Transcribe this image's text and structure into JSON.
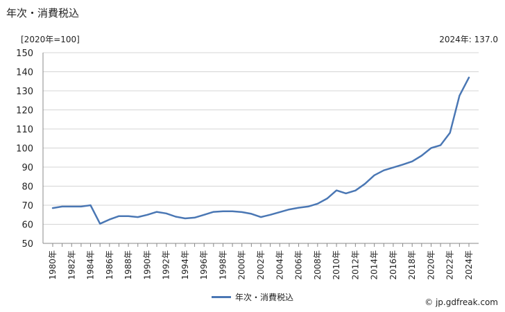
{
  "title": "年次・消費税込",
  "unit_label": "[2020年=100]",
  "latest_label": "2024年: 137.0",
  "credit": "© jp.gdfreak.com",
  "colors": {
    "line": "#4a77b4",
    "grid": "#d4d4d4",
    "axis": "#888888"
  },
  "chart_data": {
    "type": "line",
    "title": "年次・消費税込",
    "ylabel": "[2020年=100]",
    "ylim": [
      50,
      150
    ],
    "yticks": [
      50,
      60,
      70,
      80,
      90,
      100,
      110,
      120,
      130,
      140,
      150
    ],
    "grid": true,
    "legend_position": "bottom-center",
    "x": [
      "1980年",
      "1981年",
      "1982年",
      "1983年",
      "1984年",
      "1985年",
      "1986年",
      "1987年",
      "1988年",
      "1989年",
      "1990年",
      "1991年",
      "1992年",
      "1993年",
      "1994年",
      "1995年",
      "1996年",
      "1997年",
      "1998年",
      "1999年",
      "2000年",
      "2001年",
      "2002年",
      "2003年",
      "2004年",
      "2005年",
      "2006年",
      "2007年",
      "2008年",
      "2009年",
      "2010年",
      "2011年",
      "2012年",
      "2013年",
      "2014年",
      "2015年",
      "2016年",
      "2017年",
      "2018年",
      "2019年",
      "2020年",
      "2021年",
      "2022年",
      "2023年",
      "2024年"
    ],
    "xtick_labels": [
      "1980年",
      "1982年",
      "1984年",
      "1986年",
      "1988年",
      "1990年",
      "1992年",
      "1994年",
      "1996年",
      "1998年",
      "2000年",
      "2002年",
      "2004年",
      "2006年",
      "2008年",
      "2010年",
      "2012年",
      "2014年",
      "2016年",
      "2018年",
      "2020年",
      "2022年",
      "2024年"
    ],
    "series": [
      {
        "name": "年次・消費税込",
        "values": [
          68.5,
          69.3,
          69.3,
          69.3,
          70.0,
          60.3,
          62.5,
          64.3,
          64.3,
          63.8,
          65.0,
          66.5,
          65.7,
          64.0,
          63.1,
          63.5,
          65.0,
          66.5,
          66.8,
          66.8,
          66.4,
          65.5,
          63.8,
          65.0,
          66.4,
          67.8,
          68.7,
          69.3,
          70.8,
          73.5,
          77.8,
          76.2,
          77.7,
          81.2,
          85.7,
          88.3,
          89.8,
          91.3,
          93.0,
          96.0,
          100.0,
          101.5,
          108.0,
          127.5,
          137.0
        ]
      }
    ]
  }
}
